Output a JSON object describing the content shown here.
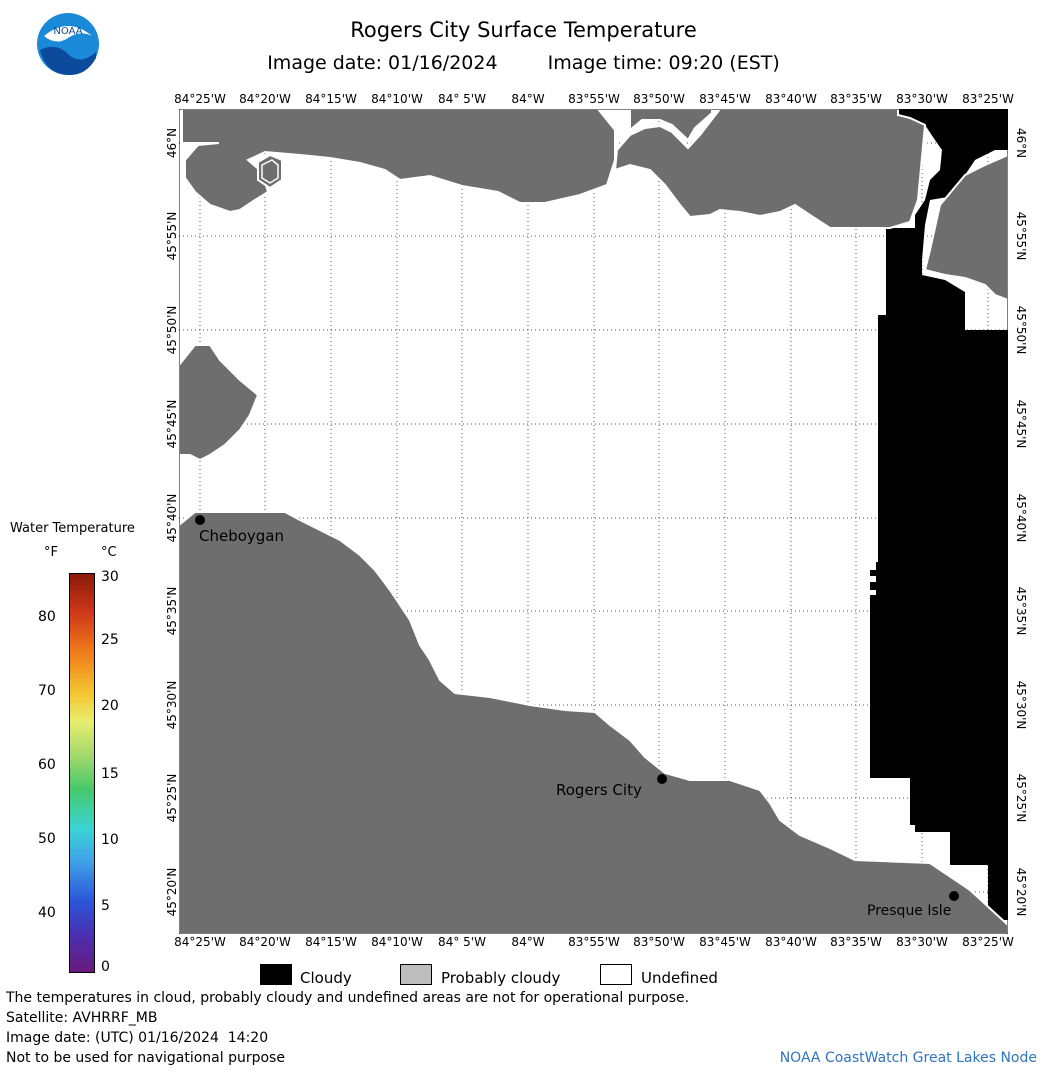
{
  "header": {
    "title": "Rogers City Surface Temperature",
    "image_date": "Image date: 01/16/2024",
    "image_time": "Image time: 09:20 (EST)"
  },
  "map": {
    "lon_labels": [
      "84°25'W",
      "84°20'W",
      "84°15'W",
      "84°10'W",
      "84° 5'W",
      "84°W",
      "83°55'W",
      "83°50'W",
      "83°45'W",
      "83°40'W",
      "83°35'W",
      "83°30'W",
      "83°25'W"
    ],
    "lat_labels": [
      "46°N",
      "45°55'N",
      "45°50'N",
      "45°45'N",
      "45°40'N",
      "45°35'N",
      "45°30'N",
      "45°25'N",
      "45°20'N"
    ],
    "cities": [
      {
        "name": "Cheboygan"
      },
      {
        "name": "Rogers City"
      },
      {
        "name": "Presque Isle"
      }
    ],
    "colors": {
      "land": "#6e6e6e",
      "cloudy": "#000000",
      "probably_cloudy": "#bebebe",
      "undefined": "#ffffff"
    }
  },
  "colorbar": {
    "title": "Water Temperature",
    "unit_f": "°F",
    "unit_c": "°C",
    "f_ticks": [
      "80",
      "70",
      "60",
      "50",
      "40"
    ],
    "c_ticks": [
      "30",
      "25",
      "20",
      "15",
      "10",
      "5",
      "0"
    ]
  },
  "legend": {
    "cloudy": "Cloudy",
    "probably_cloudy": "Probably cloudy",
    "undefined": "Undefined"
  },
  "footer": {
    "line1": "The temperatures in cloud, probably cloudy and undefined areas are not for operational purpose.",
    "line2": "Satellite: AVHRRF_MB",
    "line3": "Image date: (UTC) 01/16/2024  14:20",
    "line4": "Not to be used for navigational purpose",
    "credit": "NOAA CoastWatch Great Lakes Node"
  }
}
